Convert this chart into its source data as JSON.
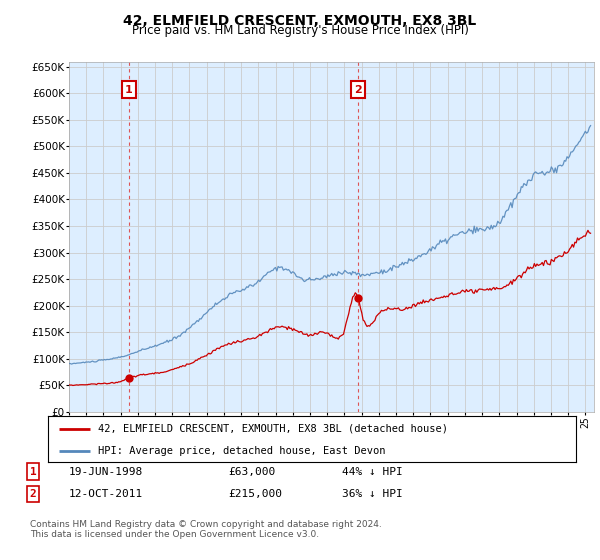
{
  "title": "42, ELMFIELD CRESCENT, EXMOUTH, EX8 3BL",
  "subtitle": "Price paid vs. HM Land Registry's House Price Index (HPI)",
  "ylim": [
    0,
    660000
  ],
  "yticks": [
    0,
    50000,
    100000,
    150000,
    200000,
    250000,
    300000,
    350000,
    400000,
    450000,
    500000,
    550000,
    600000,
    650000
  ],
  "xmin": 1995.0,
  "xmax": 2025.5,
  "sale1_x": 1998.46,
  "sale1_y": 63000,
  "sale1_label": "1",
  "sale2_x": 2011.78,
  "sale2_y": 215000,
  "sale2_label": "2",
  "red_line_color": "#cc0000",
  "blue_line_color": "#5588bb",
  "marker_color": "#cc0000",
  "vline_color": "#dd5555",
  "grid_color": "#cccccc",
  "bg_color": "#ffffff",
  "plot_bg_color": "#ddeeff",
  "legend_label_red": "42, ELMFIELD CRESCENT, EXMOUTH, EX8 3BL (detached house)",
  "legend_label_blue": "HPI: Average price, detached house, East Devon",
  "transaction1": [
    "1",
    "19-JUN-1998",
    "£63,000",
    "44% ↓ HPI"
  ],
  "transaction2": [
    "2",
    "12-OCT-2011",
    "£215,000",
    "36% ↓ HPI"
  ],
  "footer": "Contains HM Land Registry data © Crown copyright and database right 2024.\nThis data is licensed under the Open Government Licence v3.0."
}
